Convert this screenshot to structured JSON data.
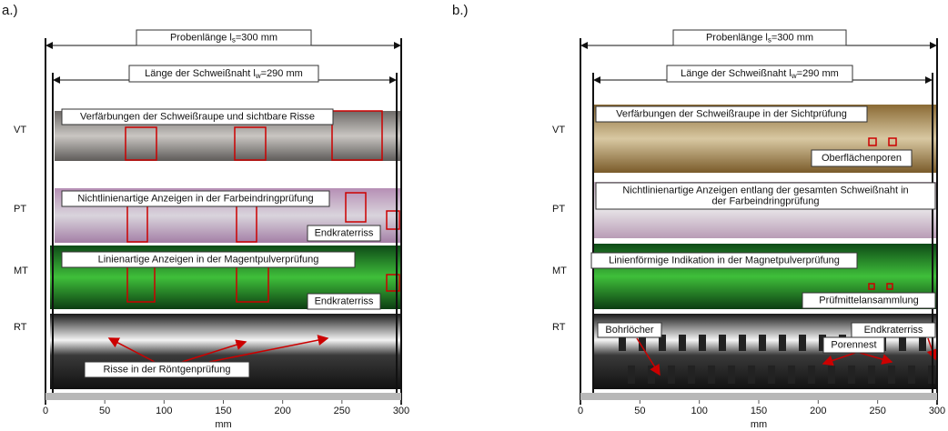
{
  "panels": [
    {
      "label": "a.)",
      "sample_length": {
        "prefix": "Probenlänge l",
        "sub": "s",
        "suffix": "=300 mm"
      },
      "seam_length": {
        "prefix": "Länge der Schweißnaht l",
        "sub": "w",
        "suffix": "=290 mm"
      },
      "rows": [
        {
          "method": "VT",
          "annotations": [
            [
              "Verfärbungen der Schweißraupe und sichtbare Risse"
            ]
          ]
        },
        {
          "method": "PT",
          "annotations": [
            [
              "Nichtlinienartige Anzeigen in der Farbeindringprüfung"
            ],
            [
              "Endkraterriss"
            ]
          ]
        },
        {
          "method": "MT",
          "annotations": [
            [
              "Linienartige Anzeigen in der Magentpulverprüfung"
            ],
            [
              "Endkraterriss"
            ]
          ]
        },
        {
          "method": "RT",
          "annotations": [
            [
              "Risse in der Röntgenprüfung"
            ]
          ]
        }
      ],
      "axis": {
        "ticks": [
          0,
          50,
          100,
          150,
          200,
          250,
          300
        ],
        "label": "mm"
      }
    },
    {
      "label": "b.)",
      "sample_length": {
        "prefix": "Probenlänge l",
        "sub": "s",
        "suffix": "=300 mm"
      },
      "seam_length": {
        "prefix": "Länge der Schweißnaht l",
        "sub": "w",
        "suffix": "=290 mm"
      },
      "rows": [
        {
          "method": "VT",
          "annotations": [
            [
              "Verfärbungen der Schweißraupe in der Sichtprüfung"
            ],
            [
              "Oberflächenporen"
            ]
          ]
        },
        {
          "method": "PT",
          "annotations": [
            [
              "Nichtlinienartige Anzeigen entlang der gesamten Schweißnaht in",
              "der Farbeindringprüfung"
            ]
          ]
        },
        {
          "method": "MT",
          "annotations": [
            [
              "Linienförmige Indikation in der Magnetpulverprüfung"
            ],
            [
              "Prüfmittelansammlung"
            ]
          ]
        },
        {
          "method": "RT",
          "annotations": [
            [
              "Bohrlöcher"
            ],
            [
              "Porennest"
            ],
            [
              "Endkraterriss"
            ]
          ]
        }
      ],
      "axis": {
        "ticks": [
          0,
          50,
          100,
          150,
          200,
          250,
          300
        ],
        "label": "mm"
      }
    }
  ]
}
